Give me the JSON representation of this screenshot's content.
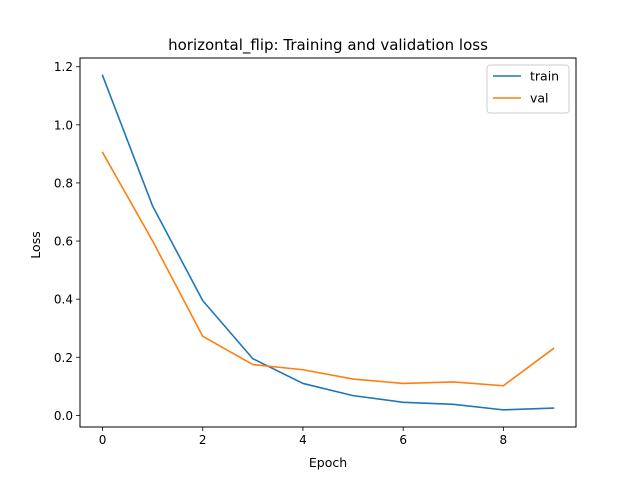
{
  "chart_data": {
    "type": "line",
    "title": "horizontal_flip: Training and validation loss",
    "xlabel": "Epoch",
    "ylabel": "Loss",
    "xlim": [
      -0.45,
      9.45
    ],
    "ylim": [
      -0.04,
      1.23
    ],
    "xticks": [
      0,
      2,
      4,
      6,
      8
    ],
    "xtick_labels": [
      "0",
      "2",
      "4",
      "6",
      "8"
    ],
    "yticks": [
      0.0,
      0.2,
      0.4,
      0.6,
      0.8,
      1.0,
      1.2
    ],
    "ytick_labels": [
      "0.0",
      "0.2",
      "0.4",
      "0.6",
      "0.8",
      "1.0",
      "1.2"
    ],
    "grid": false,
    "legend_position": "top-right",
    "x": [
      0,
      1,
      2,
      3,
      4,
      5,
      6,
      7,
      8,
      9
    ],
    "series": [
      {
        "name": "train",
        "color": "#1f77b4",
        "values": [
          1.17,
          0.72,
          0.395,
          0.195,
          0.11,
          0.068,
          0.045,
          0.038,
          0.019,
          0.025
        ]
      },
      {
        "name": "val",
        "color": "#ff7f0e",
        "values": [
          0.905,
          0.6,
          0.272,
          0.175,
          0.157,
          0.125,
          0.11,
          0.115,
          0.102,
          0.23
        ]
      }
    ]
  }
}
